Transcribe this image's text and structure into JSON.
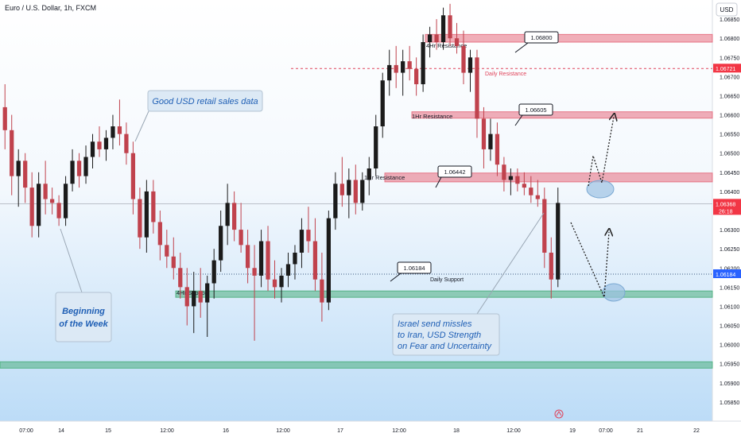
{
  "header": {
    "symbol_title": "Euro / U.S. Dollar, 1h, FXCM",
    "currency_button": "USD"
  },
  "chart_data": {
    "type": "candlestick",
    "title": "Euro / U.S. Dollar, 1h, FXCM",
    "y_axis": {
      "side": "right",
      "ylim": [
        1.058,
        1.069
      ],
      "ticks": [
        "1.06850",
        "1.06800",
        "1.06750",
        "1.06700",
        "1.06650",
        "1.06600",
        "1.06550",
        "1.06500",
        "1.06450",
        "1.06400",
        "1.06350",
        "1.06300",
        "1.06250",
        "1.06200",
        "1.06150",
        "1.06100",
        "1.06050",
        "1.06000",
        "1.05950",
        "1.05900",
        "1.05850"
      ],
      "highlight_labels": [
        {
          "price": 1.06721,
          "text": "1.06721",
          "color": "#f23645"
        },
        {
          "price": 1.06368,
          "text": "1.06368",
          "sub": "26:18",
          "color": "#f23645"
        },
        {
          "price": 1.06184,
          "text": "1.06184",
          "color": "#2962ff"
        }
      ]
    },
    "x_axis": {
      "ticks": [
        "07:00",
        "14",
        "15",
        "12:00",
        "16",
        "12:00",
        "17",
        "12:00",
        "18",
        "12:00",
        "19",
        "07:00",
        "21",
        "22"
      ]
    },
    "grid": false,
    "colors": {
      "up": "#1b1b1b",
      "down": "#c0424d",
      "background_top": "#ffffff",
      "background_bottom": "#bcdcf7"
    },
    "candles": [
      {
        "o": 1.0662,
        "h": 1.0668,
        "l": 1.0651,
        "c": 1.0656
      },
      {
        "o": 1.0656,
        "h": 1.066,
        "l": 1.0639,
        "c": 1.0644
      },
      {
        "o": 1.0644,
        "h": 1.0651,
        "l": 1.0636,
        "c": 1.0648
      },
      {
        "o": 1.0648,
        "h": 1.065,
        "l": 1.0637,
        "c": 1.0641
      },
      {
        "o": 1.0641,
        "h": 1.0645,
        "l": 1.0628,
        "c": 1.0631
      },
      {
        "o": 1.0631,
        "h": 1.0645,
        "l": 1.0628,
        "c": 1.0642
      },
      {
        "o": 1.0642,
        "h": 1.0648,
        "l": 1.0634,
        "c": 1.0638
      },
      {
        "o": 1.0638,
        "h": 1.0641,
        "l": 1.0634,
        "c": 1.0637
      },
      {
        "o": 1.0637,
        "h": 1.0639,
        "l": 1.0631,
        "c": 1.0633
      },
      {
        "o": 1.0633,
        "h": 1.0644,
        "l": 1.0631,
        "c": 1.0642
      },
      {
        "o": 1.0642,
        "h": 1.0651,
        "l": 1.064,
        "c": 1.0648
      },
      {
        "o": 1.0648,
        "h": 1.065,
        "l": 1.0641,
        "c": 1.0644
      },
      {
        "o": 1.0644,
        "h": 1.0652,
        "l": 1.0642,
        "c": 1.0649
      },
      {
        "o": 1.0649,
        "h": 1.0655,
        "l": 1.0646,
        "c": 1.0653
      },
      {
        "o": 1.0653,
        "h": 1.0657,
        "l": 1.0649,
        "c": 1.0651
      },
      {
        "o": 1.0651,
        "h": 1.0656,
        "l": 1.0648,
        "c": 1.0654
      },
      {
        "o": 1.0654,
        "h": 1.066,
        "l": 1.0651,
        "c": 1.0657
      },
      {
        "o": 1.0657,
        "h": 1.0664,
        "l": 1.0652,
        "c": 1.0655
      },
      {
        "o": 1.0655,
        "h": 1.0658,
        "l": 1.0647,
        "c": 1.065
      },
      {
        "o": 1.065,
        "h": 1.0653,
        "l": 1.0634,
        "c": 1.0638
      },
      {
        "o": 1.0638,
        "h": 1.0641,
        "l": 1.0625,
        "c": 1.0628
      },
      {
        "o": 1.0628,
        "h": 1.0643,
        "l": 1.0624,
        "c": 1.064
      },
      {
        "o": 1.064,
        "h": 1.0643,
        "l": 1.0629,
        "c": 1.0632
      },
      {
        "o": 1.0632,
        "h": 1.0635,
        "l": 1.0622,
        "c": 1.0626
      },
      {
        "o": 1.0626,
        "h": 1.063,
        "l": 1.062,
        "c": 1.0623
      },
      {
        "o": 1.0623,
        "h": 1.0628,
        "l": 1.0617,
        "c": 1.062
      },
      {
        "o": 1.062,
        "h": 1.0624,
        "l": 1.0612,
        "c": 1.0615
      },
      {
        "o": 1.0615,
        "h": 1.062,
        "l": 1.0605,
        "c": 1.061
      },
      {
        "o": 1.061,
        "h": 1.0619,
        "l": 1.0603,
        "c": 1.0614
      },
      {
        "o": 1.0614,
        "h": 1.062,
        "l": 1.0607,
        "c": 1.0611
      },
      {
        "o": 1.0611,
        "h": 1.0618,
        "l": 1.0602,
        "c": 1.0616
      },
      {
        "o": 1.0616,
        "h": 1.0625,
        "l": 1.0612,
        "c": 1.0622
      },
      {
        "o": 1.0622,
        "h": 1.0635,
        "l": 1.0619,
        "c": 1.0631
      },
      {
        "o": 1.0631,
        "h": 1.0642,
        "l": 1.0626,
        "c": 1.0637
      },
      {
        "o": 1.0637,
        "h": 1.064,
        "l": 1.0627,
        "c": 1.063
      },
      {
        "o": 1.063,
        "h": 1.0637,
        "l": 1.0624,
        "c": 1.0626
      },
      {
        "o": 1.0626,
        "h": 1.063,
        "l": 1.0616,
        "c": 1.062
      },
      {
        "o": 1.062,
        "h": 1.0626,
        "l": 1.0601,
        "c": 1.0618
      },
      {
        "o": 1.0618,
        "h": 1.063,
        "l": 1.0615,
        "c": 1.0627
      },
      {
        "o": 1.0627,
        "h": 1.0631,
        "l": 1.0614,
        "c": 1.0617
      },
      {
        "o": 1.0617,
        "h": 1.0622,
        "l": 1.0612,
        "c": 1.0615
      },
      {
        "o": 1.0615,
        "h": 1.062,
        "l": 1.0611,
        "c": 1.0618
      },
      {
        "o": 1.0618,
        "h": 1.0624,
        "l": 1.0615,
        "c": 1.0621
      },
      {
        "o": 1.0621,
        "h": 1.0626,
        "l": 1.0617,
        "c": 1.0624
      },
      {
        "o": 1.0624,
        "h": 1.0633,
        "l": 1.062,
        "c": 1.063
      },
      {
        "o": 1.063,
        "h": 1.0636,
        "l": 1.0624,
        "c": 1.0627
      },
      {
        "o": 1.0627,
        "h": 1.0633,
        "l": 1.0614,
        "c": 1.0617
      },
      {
        "o": 1.0617,
        "h": 1.0624,
        "l": 1.0606,
        "c": 1.0611
      },
      {
        "o": 1.0611,
        "h": 1.0635,
        "l": 1.0609,
        "c": 1.0633
      },
      {
        "o": 1.0633,
        "h": 1.0645,
        "l": 1.063,
        "c": 1.0642
      },
      {
        "o": 1.0642,
        "h": 1.0649,
        "l": 1.0636,
        "c": 1.0639
      },
      {
        "o": 1.0639,
        "h": 1.0646,
        "l": 1.0633,
        "c": 1.0643
      },
      {
        "o": 1.0643,
        "h": 1.0647,
        "l": 1.0634,
        "c": 1.0637
      },
      {
        "o": 1.0637,
        "h": 1.0645,
        "l": 1.0635,
        "c": 1.0643
      },
      {
        "o": 1.0643,
        "h": 1.0649,
        "l": 1.0639,
        "c": 1.0646
      },
      {
        "o": 1.0646,
        "h": 1.066,
        "l": 1.0644,
        "c": 1.0657
      },
      {
        "o": 1.0657,
        "h": 1.0671,
        "l": 1.0654,
        "c": 1.0669
      },
      {
        "o": 1.0669,
        "h": 1.0677,
        "l": 1.0665,
        "c": 1.0673
      },
      {
        "o": 1.0673,
        "h": 1.0678,
        "l": 1.0667,
        "c": 1.0671
      },
      {
        "o": 1.0671,
        "h": 1.0677,
        "l": 1.0665,
        "c": 1.0674
      },
      {
        "o": 1.0674,
        "h": 1.0678,
        "l": 1.0669,
        "c": 1.0672
      },
      {
        "o": 1.0672,
        "h": 1.0675,
        "l": 1.0665,
        "c": 1.0668
      },
      {
        "o": 1.0668,
        "h": 1.0681,
        "l": 1.0666,
        "c": 1.0679
      },
      {
        "o": 1.0679,
        "h": 1.0683,
        "l": 1.0675,
        "c": 1.0681
      },
      {
        "o": 1.0681,
        "h": 1.0685,
        "l": 1.0677,
        "c": 1.0679
      },
      {
        "o": 1.0679,
        "h": 1.0688,
        "l": 1.0677,
        "c": 1.0686
      },
      {
        "o": 1.0686,
        "h": 1.0689,
        "l": 1.0678,
        "c": 1.068
      },
      {
        "o": 1.068,
        "h": 1.0684,
        "l": 1.0676,
        "c": 1.0678
      },
      {
        "o": 1.0678,
        "h": 1.0682,
        "l": 1.0668,
        "c": 1.0671
      },
      {
        "o": 1.0671,
        "h": 1.0677,
        "l": 1.0666,
        "c": 1.0675
      },
      {
        "o": 1.0675,
        "h": 1.0677,
        "l": 1.0654,
        "c": 1.0659
      },
      {
        "o": 1.0659,
        "h": 1.0662,
        "l": 1.0646,
        "c": 1.0651
      },
      {
        "o": 1.0651,
        "h": 1.0659,
        "l": 1.0648,
        "c": 1.0655
      },
      {
        "o": 1.0655,
        "h": 1.0658,
        "l": 1.0644,
        "c": 1.0647
      },
      {
        "o": 1.0647,
        "h": 1.0649,
        "l": 1.064,
        "c": 1.0643
      },
      {
        "o": 1.0643,
        "h": 1.0646,
        "l": 1.0639,
        "c": 1.0644
      },
      {
        "o": 1.0644,
        "h": 1.0646,
        "l": 1.064,
        "c": 1.0642
      },
      {
        "o": 1.0642,
        "h": 1.0645,
        "l": 1.0639,
        "c": 1.0641
      },
      {
        "o": 1.0641,
        "h": 1.0644,
        "l": 1.0637,
        "c": 1.0639
      },
      {
        "o": 1.0639,
        "h": 1.0643,
        "l": 1.0636,
        "c": 1.0638
      },
      {
        "o": 1.0638,
        "h": 1.0641,
        "l": 1.062,
        "c": 1.0624
      },
      {
        "o": 1.0624,
        "h": 1.0628,
        "l": 1.0612,
        "c": 1.0617
      },
      {
        "o": 1.0617,
        "h": 1.0641,
        "l": 1.0615,
        "c": 1.0637
      }
    ],
    "zones": [
      {
        "label": "4Hr Resistance",
        "from": 1.0679,
        "to": 1.0681,
        "color": "#e56c7d"
      },
      {
        "label": "1Hr Resistance",
        "from": 1.06595,
        "to": 1.06608,
        "color": "#e56c7d"
      },
      {
        "label": "1Hr Resistance",
        "from": 1.06425,
        "to": 1.06448,
        "color": "#e56c7d"
      },
      {
        "label": "4Hr Support",
        "from": 1.06125,
        "to": 1.0614,
        "color": "#4caf7d"
      },
      {
        "label": "",
        "from": 1.0594,
        "to": 1.05955,
        "color": "#4caf7d"
      }
    ],
    "lines": [
      {
        "label": "Daily Resistance",
        "price": 1.06721,
        "style": "dashed",
        "color": "#e0435a"
      },
      {
        "label": "Daily Support",
        "price": 1.06184,
        "style": "dotted",
        "color": "#3d5a80"
      }
    ],
    "price_callouts": [
      "1.06800",
      "1.06605",
      "1.06442",
      "1.06184"
    ]
  },
  "annotations": {
    "retail_sales": "Good USD retail sales data",
    "week_start_line1": "Beginning",
    "week_start_line2": "of the Week",
    "israel_line1": "Israel send missles",
    "israel_line2": "to Iran, USD Strength",
    "israel_line3": "on Fear and Uncertainty"
  }
}
